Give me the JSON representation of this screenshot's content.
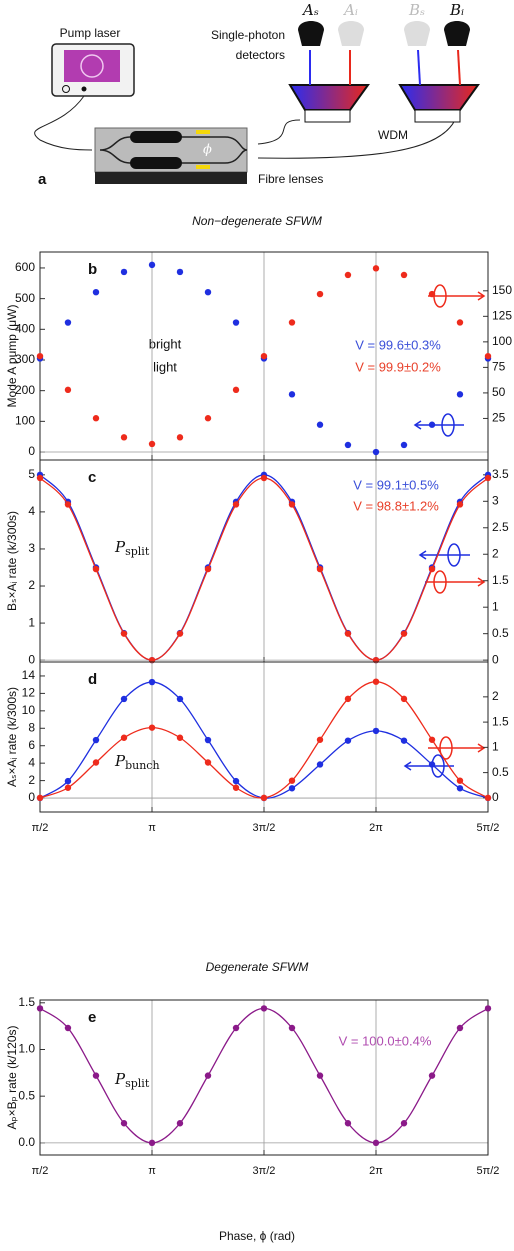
{
  "figure": {
    "diagram": {
      "label": "a",
      "pump_laser": "Pump laser",
      "detectors": [
        "Single-photon",
        "detectors"
      ],
      "wdm": "WDM",
      "fibre_lenses": "Fibre lenses",
      "phi": "ϕ",
      "detector_labels": [
        "Aₛ",
        "Aᵢ",
        "Bₛ",
        "Bᵢ"
      ]
    },
    "headings": [
      "Non−degenerate SFWM",
      "Degenerate SFWM"
    ],
    "x_axis_label": "Phase, ϕ (rad)"
  },
  "chart_data": [
    {
      "type": "scatter",
      "panel": "b",
      "ylabel": "Mode A pump (μW)",
      "x": [
        1.571,
        1.963,
        2.356,
        2.749,
        3.142,
        3.534,
        3.927,
        4.32,
        4.712,
        5.105,
        5.498,
        5.89,
        6.283,
        6.676,
        7.069,
        7.461,
        7.854
      ],
      "xlim": [
        1.5708,
        7.854
      ],
      "xticks": [
        3.1416,
        4.7124,
        6.2832
      ],
      "ylim": [
        -26,
        652
      ],
      "yticks": [
        0,
        100,
        200,
        300,
        400,
        500,
        600
      ],
      "y2lim": [
        -15.7,
        188
      ],
      "y2ticks": [
        25,
        50,
        75,
        100,
        125,
        150
      ],
      "grid": true,
      "fit": false,
      "series": [
        {
          "color": "#1f2fe0",
          "values": [
            305,
            422,
            521,
            587,
            610,
            587,
            521,
            422,
            305,
            188,
            89,
            23,
            0,
            23,
            89,
            188,
            305
          ]
        },
        {
          "color": "#ee2b1c",
          "axis": "y2",
          "values": [
            86,
            53,
            25.2,
            6.5,
            0,
            6.5,
            25.2,
            53,
            86,
            119,
            146.8,
            165.5,
            172,
            165.5,
            146.8,
            119,
            86
          ]
        }
      ],
      "annotations": [
        "bright",
        "light",
        "V = 99.6±0.3%",
        "V = 99.9±0.2%"
      ]
    },
    {
      "type": "scatter",
      "panel": "c",
      "ylabel": "Bₛ×Aᵢ rate (k/300s)",
      "x": [
        1.571,
        1.963,
        2.356,
        2.749,
        3.142,
        3.534,
        3.927,
        4.32,
        4.712,
        5.105,
        5.498,
        5.89,
        6.283,
        6.676,
        7.069,
        7.461,
        7.854
      ],
      "xlim": [
        1.5708,
        7.854
      ],
      "xticks": [
        3.1416,
        4.7124,
        6.2832
      ],
      "ylim": [
        -0.05,
        5.4
      ],
      "yticks": [
        0,
        1,
        2,
        3,
        4,
        5
      ],
      "y2lim": [
        -0.035,
        3.78
      ],
      "y2ticks": [
        0,
        0.5,
        1,
        1.5,
        2,
        2.5,
        3,
        3.5
      ],
      "grid": true,
      "fit": true,
      "series": [
        {
          "color": "#1f2fe0",
          "values": [
            5,
            4.27,
            2.5,
            0.73,
            0,
            0.73,
            2.5,
            4.27,
            5,
            4.27,
            2.5,
            0.73,
            0,
            0.73,
            2.5,
            4.27,
            5
          ]
        },
        {
          "color": "#ee2b1c",
          "axis": "y2",
          "values": [
            3.44,
            2.94,
            1.72,
            0.5,
            0,
            0.5,
            1.72,
            2.94,
            3.44,
            2.94,
            1.72,
            0.5,
            0,
            0.5,
            1.72,
            2.94,
            3.44
          ]
        }
      ],
      "annotations": [
        {
          "text": "P",
          "sub": "split"
        },
        "V = 99.1±0.5%",
        "V = 98.8±1.2%"
      ]
    },
    {
      "type": "scatter",
      "panel": "d",
      "ylabel": "Aₛ×Aᵢ rate (k/300s)",
      "x": [
        1.571,
        1.963,
        2.356,
        2.749,
        3.142,
        3.534,
        3.927,
        4.32,
        4.712,
        5.105,
        5.498,
        5.89,
        6.283,
        6.676,
        7.069,
        7.461,
        7.854
      ],
      "xlim": [
        1.5708,
        7.854
      ],
      "xticks": [
        {
          "value": 1.5708,
          "label": "π/2"
        },
        {
          "value": 3.1416,
          "label": "π"
        },
        {
          "value": 4.7124,
          "label": "3π/2"
        },
        {
          "value": 6.2832,
          "label": "2π"
        },
        {
          "value": 7.854,
          "label": "5π/2"
        }
      ],
      "ylim": [
        -1.6,
        15.6
      ],
      "yticks": [
        0,
        2,
        4,
        6,
        8,
        10,
        12,
        14
      ],
      "y2lim": [
        -0.28,
        2.69
      ],
      "y2ticks": [
        0,
        0.5,
        1,
        1.5,
        2
      ],
      "grid": true,
      "fit": true,
      "series": [
        {
          "color": "#1f2fe0",
          "values": [
            0,
            1.94,
            6.65,
            11.36,
            13.3,
            11.36,
            6.65,
            1.94,
            0,
            1.12,
            3.85,
            6.58,
            7.7,
            6.58,
            3.85,
            1.12,
            0
          ]
        },
        {
          "color": "#ee2b1c",
          "axis": "y2",
          "values": [
            0,
            0.2,
            0.7,
            1.19,
            1.39,
            1.19,
            0.7,
            0.2,
            0,
            0.34,
            1.15,
            1.96,
            2.3,
            1.96,
            1.15,
            0.34,
            0
          ]
        }
      ],
      "annotations": [
        {
          "text": "P",
          "sub": "bunch"
        }
      ]
    },
    {
      "type": "scatter",
      "panel": "e",
      "ylabel": "Aₚ×Bₚ rate (k/120s)",
      "x": [
        1.571,
        1.963,
        2.356,
        2.749,
        3.142,
        3.534,
        3.927,
        4.32,
        4.712,
        5.105,
        5.498,
        5.89,
        6.283,
        6.676,
        7.069,
        7.461,
        7.854
      ],
      "xlim": [
        1.5708,
        7.854
      ],
      "xticks": [
        {
          "value": 1.5708,
          "label": "π/2"
        },
        {
          "value": 3.1416,
          "label": "π"
        },
        {
          "value": 4.7124,
          "label": "3π/2"
        },
        {
          "value": 6.2832,
          "label": "2π"
        },
        {
          "value": 7.854,
          "label": "5π/2"
        }
      ],
      "ylim": [
        -0.13,
        1.53
      ],
      "yticks": [
        {
          "value": 0,
          "label": "0.0"
        },
        {
          "value": 0.5,
          "label": "0.5"
        },
        {
          "value": 1,
          "label": "1.0"
        },
        {
          "value": 1.5,
          "label": "1.5"
        }
      ],
      "grid": true,
      "fit": true,
      "series": [
        {
          "color": "#8b1a89",
          "values": [
            1.44,
            1.23,
            0.72,
            0.21,
            0,
            0.21,
            0.72,
            1.23,
            1.44,
            1.23,
            0.72,
            0.21,
            0,
            0.21,
            0.72,
            1.23,
            1.44
          ]
        }
      ],
      "annotations": [
        {
          "text": "P",
          "sub": "split"
        },
        "V = 100.0±0.4%"
      ]
    }
  ]
}
